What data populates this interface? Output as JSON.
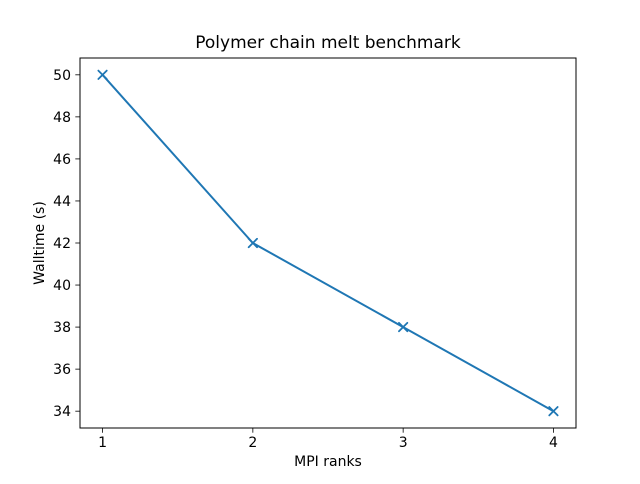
{
  "chart_data": {
    "type": "line",
    "title": "Polymer chain melt benchmark",
    "xlabel": "MPI ranks",
    "ylabel": "Walltime (s)",
    "x": [
      1,
      2,
      3,
      4
    ],
    "series": [
      {
        "name": "walltime",
        "values": [
          50,
          42,
          38,
          34
        ],
        "color": "#1f77b4",
        "marker": "x"
      }
    ],
    "xticks": [
      1,
      2,
      3,
      4
    ],
    "yticks": [
      34,
      36,
      38,
      40,
      42,
      44,
      46,
      48,
      50
    ],
    "xlim": [
      0.85,
      4.15
    ],
    "ylim": [
      33.2,
      50.8
    ],
    "grid": false,
    "legend": null
  },
  "colors": {
    "line": "#1f77b4",
    "spine": "#000000",
    "tick": "#000000",
    "text": "#000000",
    "background": "#ffffff"
  }
}
